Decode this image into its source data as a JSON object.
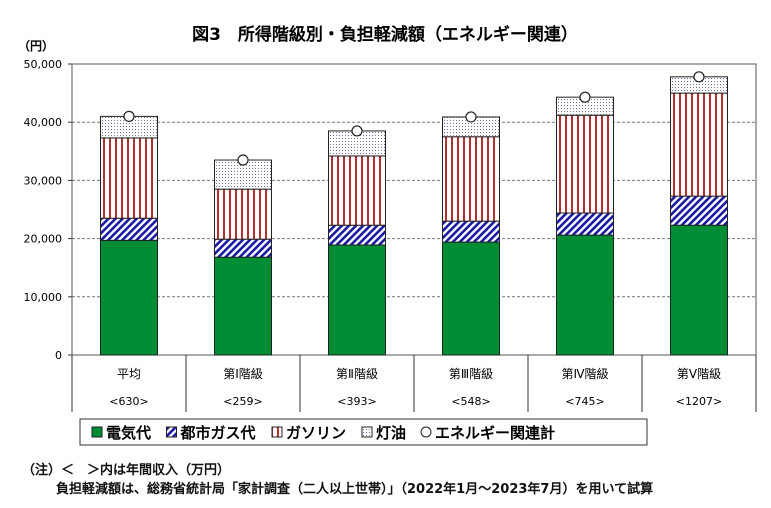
{
  "chart_data": {
    "type": "bar",
    "stacked": true,
    "title": "図3　所得階級別・負担軽減額（エネルギー関連）",
    "ylabel": "（円）",
    "ylim": [
      0,
      50000
    ],
    "yticks": [
      "0",
      "10,000",
      "20,000",
      "30,000",
      "40,000",
      "50,000"
    ],
    "ytick_values": [
      0,
      10000,
      20000,
      30000,
      40000,
      50000
    ],
    "grid": true,
    "categories": [
      "平均",
      "第Ⅰ階級",
      "第Ⅱ階級",
      "第Ⅲ階級",
      "第Ⅳ階級",
      "第Ⅴ階級"
    ],
    "incomes": [
      "<630>",
      "<259>",
      "<393>",
      "<548>",
      "<745>",
      "<1207>"
    ],
    "series": [
      {
        "name": "電気代",
        "color": "#008c35",
        "pattern": "solid",
        "values": [
          19700,
          16800,
          18900,
          19400,
          20600,
          22300
        ]
      },
      {
        "name": "都市ガス代",
        "color": "#1a1aa0",
        "pattern": "diagonal",
        "values": [
          3800,
          3100,
          3400,
          3600,
          3800,
          5000
        ]
      },
      {
        "name": "ガソリン",
        "color": "#b03030",
        "pattern": "vertical",
        "values": [
          13800,
          8600,
          11900,
          14500,
          16800,
          17700
        ]
      },
      {
        "name": "灯油",
        "color": "#7070a0",
        "pattern": "dots",
        "values": [
          3700,
          5000,
          4300,
          3400,
          3100,
          2800
        ]
      }
    ],
    "total": {
      "name": "エネルギー関連計",
      "marker": "circle",
      "values": [
        41000,
        33500,
        38500,
        40900,
        44300,
        47800
      ]
    },
    "legend": "bottom"
  },
  "notes": {
    "line1": "（注）＜　＞内は年間収入（万円）",
    "line2": "負担軽減額は、総務省統計局「家計調査（二人以上世帯）」（2022年1月～2023年7月）を用いて試算"
  }
}
